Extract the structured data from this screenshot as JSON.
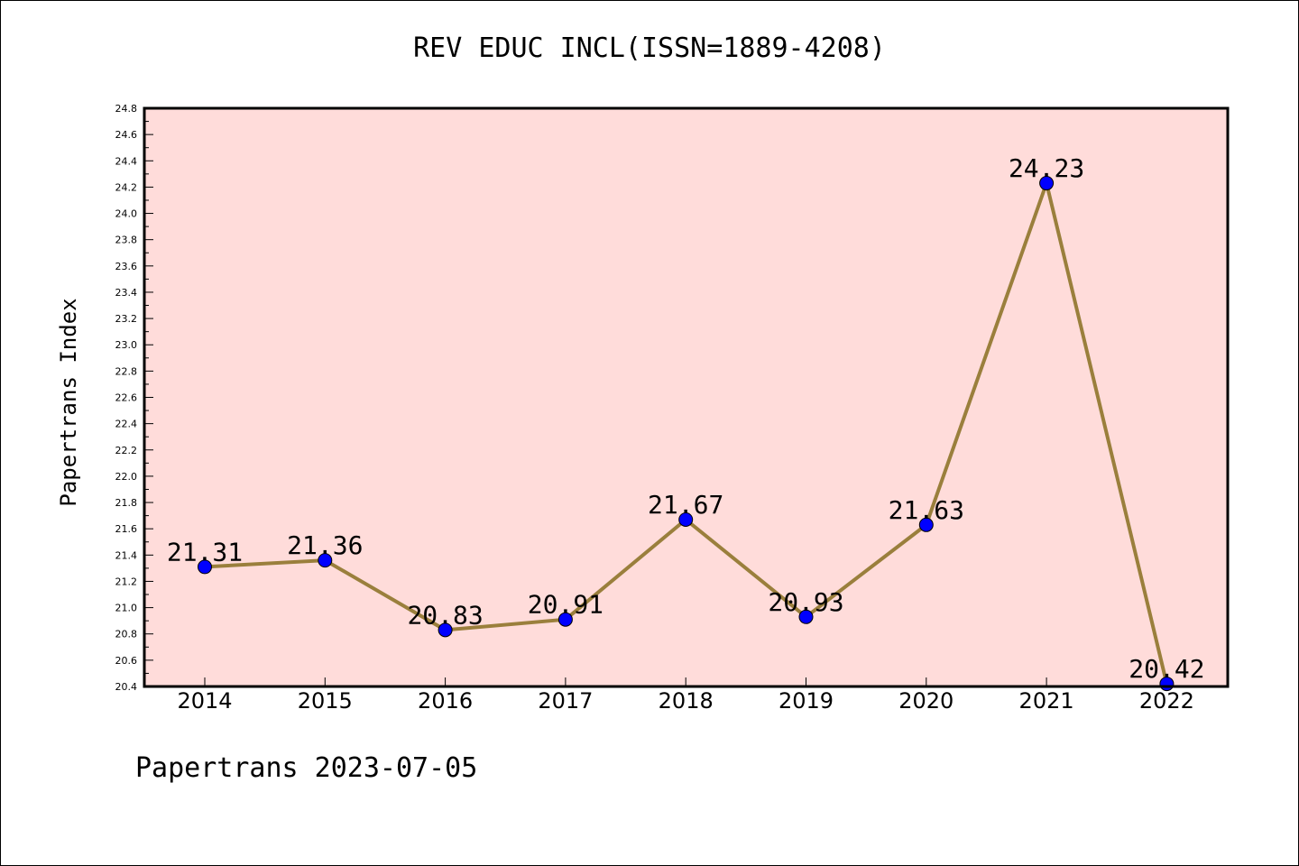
{
  "chart_data": {
    "type": "line",
    "title": "REV EDUC INCL(ISSN=1889-4208)",
    "ylabel": "Papertrans Index",
    "xlabel": "",
    "categories": [
      "2014",
      "2015",
      "2016",
      "2017",
      "2018",
      "2019",
      "2020",
      "2021",
      "2022"
    ],
    "series": [
      {
        "values": [
          21.31,
          21.36,
          20.83,
          20.91,
          21.67,
          20.93,
          21.63,
          24.23,
          20.42
        ]
      }
    ],
    "data_labels": [
      "21.31",
      "21.36",
      "20.83",
      "20.91",
      "21.67",
      "20.93",
      "21.63",
      "24.23",
      "20.42"
    ],
    "ylim": [
      20.4,
      24.8
    ],
    "yticks": [
      "20.4",
      "20.6",
      "20.8",
      "21.0",
      "21.2",
      "21.4",
      "21.6",
      "21.8",
      "22.0",
      "22.2",
      "22.4",
      "22.6",
      "22.8",
      "23.0",
      "23.2",
      "23.4",
      "23.6",
      "23.8",
      "24.0",
      "24.2",
      "24.4",
      "24.6",
      "24.8"
    ],
    "grid": false,
    "colors": {
      "plot_background": "#FFDCDA",
      "line": "#9A7F3C",
      "marker": "#0000FF"
    }
  },
  "footer": {
    "text": "Papertrans 2023-07-05"
  }
}
